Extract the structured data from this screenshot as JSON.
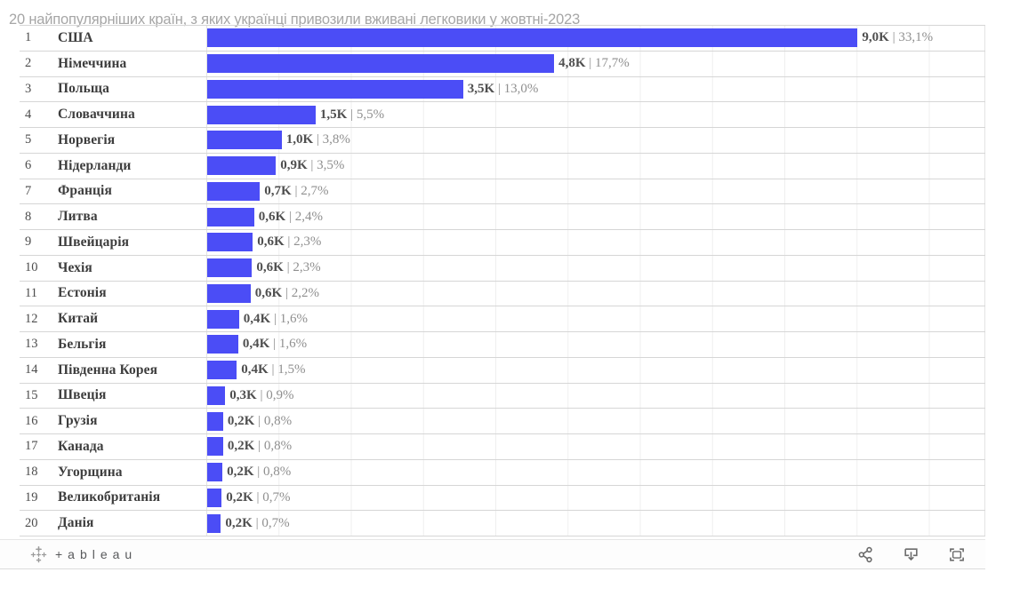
{
  "chart_data": {
    "type": "bar",
    "orientation": "horizontal",
    "title": "",
    "value_unit": "K vehicles",
    "label_separator": " | ",
    "axis": {
      "x_min_k": 0,
      "x_max_k": 10.78,
      "gridline_every_k": 1,
      "grid": true
    },
    "rows": [
      {
        "rank": "1",
        "country": "США",
        "value_label": "9,0K",
        "percent_label": "33,1%",
        "value_k": 9.0
      },
      {
        "rank": "2",
        "country": "Німеччина",
        "value_label": "4,8K",
        "percent_label": "17,7%",
        "value_k": 4.8
      },
      {
        "rank": "3",
        "country": "Польща",
        "value_label": "3,5K",
        "percent_label": "13,0%",
        "value_k": 3.54
      },
      {
        "rank": "4",
        "country": "Словаччина",
        "value_label": "1,5K",
        "percent_label": "5,5%",
        "value_k": 1.5
      },
      {
        "rank": "5",
        "country": "Норвегія",
        "value_label": "1,0K",
        "percent_label": "3,8%",
        "value_k": 1.03
      },
      {
        "rank": "6",
        "country": "Нідерланди",
        "value_label": "0,9K",
        "percent_label": "3,5%",
        "value_k": 0.95
      },
      {
        "rank": "7",
        "country": "Франція",
        "value_label": "0,7K",
        "percent_label": "2,7%",
        "value_k": 0.73
      },
      {
        "rank": "8",
        "country": "Литва",
        "value_label": "0,6K",
        "percent_label": "2,4%",
        "value_k": 0.65
      },
      {
        "rank": "9",
        "country": "Швейцарія",
        "value_label": "0,6K",
        "percent_label": "2,3%",
        "value_k": 0.63
      },
      {
        "rank": "10",
        "country": "Чехія",
        "value_label": "0,6K",
        "percent_label": "2,3%",
        "value_k": 0.62
      },
      {
        "rank": "11",
        "country": "Естонія",
        "value_label": "0,6K",
        "percent_label": "2,2%",
        "value_k": 0.6
      },
      {
        "rank": "12",
        "country": "Китай",
        "value_label": "0,4K",
        "percent_label": "1,6%",
        "value_k": 0.44
      },
      {
        "rank": "13",
        "country": "Бельгія",
        "value_label": "0,4K",
        "percent_label": "1,6%",
        "value_k": 0.43
      },
      {
        "rank": "14",
        "country": "Південна Корея",
        "value_label": "0,4K",
        "percent_label": "1,5%",
        "value_k": 0.41
      },
      {
        "rank": "15",
        "country": "Швеція",
        "value_label": "0,3K",
        "percent_label": "0,9%",
        "value_k": 0.25
      },
      {
        "rank": "16",
        "country": "Грузія",
        "value_label": "0,2K",
        "percent_label": "0,8%",
        "value_k": 0.22
      },
      {
        "rank": "17",
        "country": "Канада",
        "value_label": "0,2K",
        "percent_label": "0,8%",
        "value_k": 0.22
      },
      {
        "rank": "18",
        "country": "Угорщина",
        "value_label": "0,2K",
        "percent_label": "0,8%",
        "value_k": 0.21
      },
      {
        "rank": "19",
        "country": "Великобританія",
        "value_label": "0,2K",
        "percent_label": "0,7%",
        "value_k": 0.2
      },
      {
        "rank": "20",
        "country": "Данія",
        "value_label": "0,2K",
        "percent_label": "0,7%",
        "value_k": 0.19
      }
    ]
  },
  "colors": {
    "bar": "#4b4df6",
    "value_text": "#4f4f4f",
    "percent_text": "#8f8f8f",
    "gridline": "#efefef",
    "row_border": "#d6d6d6",
    "caption_text": "#a6a6a6"
  },
  "toolbar": {
    "logo_text": "+ableau",
    "icons": [
      {
        "name": "share"
      },
      {
        "name": "download"
      },
      {
        "name": "toggle-fullscreen"
      }
    ]
  },
  "caption": {
    "text": "20 найпопулярніших країн, з яких українці привозили вживані легковики у жовтні-2023"
  }
}
